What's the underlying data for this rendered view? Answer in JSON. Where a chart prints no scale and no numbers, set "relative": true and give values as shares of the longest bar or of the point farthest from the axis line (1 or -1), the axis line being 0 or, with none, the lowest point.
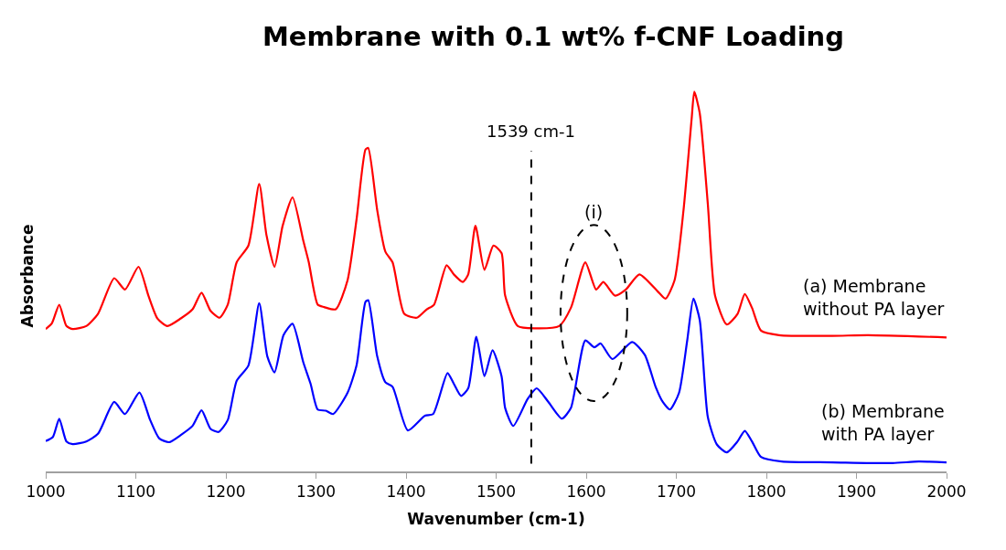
{
  "chart_data": {
    "type": "line",
    "title": "Membrane with 0.1 wt% f-CNF Loading",
    "xlabel": "Wavenumber (cm-1)",
    "ylabel": "Absorbance",
    "relative": true,
    "xlim": [
      1000,
      2000
    ],
    "xticks": [
      1000,
      1100,
      1200,
      1300,
      1400,
      1500,
      1600,
      1700,
      1800,
      1900,
      2000
    ],
    "legend": false,
    "marker": "none",
    "line_style": "solid",
    "series": [
      {
        "name": "(a) Membrane\nwithout PA layer",
        "color": "#ff0000",
        "x": [
          1000,
          1007,
          1015,
          1023,
          1030,
          1045,
          1058,
          1076,
          1088,
          1103,
          1114,
          1124,
          1135,
          1150,
          1163,
          1173,
          1183,
          1193,
          1202,
          1212,
          1225,
          1237,
          1245,
          1254,
          1263,
          1274,
          1286,
          1292,
          1302,
          1309,
          1322,
          1335,
          1345,
          1355,
          1358,
          1368,
          1377,
          1385,
          1398,
          1412,
          1423,
          1431,
          1445,
          1453,
          1463,
          1469,
          1477,
          1487,
          1497,
          1506,
          1510,
          1524,
          1543,
          1570,
          1583,
          1599,
          1611,
          1619,
          1632,
          1644,
          1659,
          1679,
          1688,
          1698,
          1708,
          1717,
          1720,
          1726,
          1735,
          1743,
          1756,
          1768,
          1776,
          1784,
          1794,
          1814,
          1873,
          1913,
          2000
        ],
        "values": [
          0.375,
          0.391,
          0.439,
          0.383,
          0.375,
          0.383,
          0.415,
          0.509,
          0.479,
          0.539,
          0.463,
          0.403,
          0.383,
          0.403,
          0.427,
          0.471,
          0.423,
          0.405,
          0.439,
          0.551,
          0.595,
          0.757,
          0.623,
          0.539,
          0.647,
          0.722,
          0.607,
          0.551,
          0.439,
          0.433,
          0.427,
          0.503,
          0.663,
          0.848,
          0.852,
          0.688,
          0.579,
          0.551,
          0.415,
          0.405,
          0.427,
          0.439,
          0.543,
          0.519,
          0.499,
          0.519,
          0.647,
          0.531,
          0.595,
          0.575,
          0.463,
          0.383,
          0.377,
          0.383,
          0.431,
          0.551,
          0.479,
          0.499,
          0.463,
          0.479,
          0.519,
          0.475,
          0.455,
          0.503,
          0.688,
          0.928,
          1.0,
          0.944,
          0.704,
          0.463,
          0.387,
          0.415,
          0.467,
          0.431,
          0.371,
          0.359,
          0.357,
          0.359,
          0.353
        ]
      },
      {
        "name": "(b) Membrane\nwith PA layer",
        "color": "#0000ff",
        "x": [
          1000,
          1008,
          1015,
          1023,
          1030,
          1045,
          1058,
          1076,
          1088,
          1104,
          1116,
          1126,
          1137,
          1150,
          1163,
          1173,
          1183,
          1192,
          1202,
          1212,
          1225,
          1237,
          1246,
          1254,
          1264,
          1274,
          1286,
          1294,
          1302,
          1311,
          1319,
          1335,
          1345,
          1355,
          1358,
          1368,
          1377,
          1385,
          1402,
          1421,
          1430,
          1446,
          1453,
          1461,
          1469,
          1478,
          1487,
          1496,
          1506,
          1510,
          1519,
          1535,
          1545,
          1558,
          1573,
          1583,
          1599,
          1609,
          1616,
          1629,
          1651,
          1665,
          1677,
          1685,
          1693,
          1703,
          1712,
          1719,
          1726,
          1735,
          1745,
          1756,
          1768,
          1776,
          1784,
          1794,
          1817,
          1873,
          1940,
          1969,
          2000
        ],
        "values": [
          0.08,
          0.091,
          0.139,
          0.079,
          0.072,
          0.079,
          0.099,
          0.183,
          0.151,
          0.208,
          0.135,
          0.087,
          0.077,
          0.096,
          0.12,
          0.161,
          0.112,
          0.104,
          0.135,
          0.239,
          0.279,
          0.443,
          0.303,
          0.261,
          0.359,
          0.389,
          0.287,
          0.231,
          0.163,
          0.16,
          0.151,
          0.207,
          0.279,
          0.447,
          0.451,
          0.303,
          0.235,
          0.223,
          0.108,
          0.147,
          0.151,
          0.259,
          0.231,
          0.199,
          0.219,
          0.355,
          0.251,
          0.319,
          0.251,
          0.167,
          0.12,
          0.191,
          0.219,
          0.183,
          0.139,
          0.167,
          0.345,
          0.327,
          0.337,
          0.296,
          0.341,
          0.307,
          0.223,
          0.183,
          0.163,
          0.207,
          0.343,
          0.455,
          0.399,
          0.143,
          0.071,
          0.05,
          0.079,
          0.107,
          0.079,
          0.038,
          0.026,
          0.024,
          0.022,
          0.026,
          0.024
        ]
      }
    ],
    "ref_lines": [
      {
        "axis": "x",
        "value": 1539,
        "label": "1539 cm-1",
        "color": "#000000",
        "line_style": "dashed"
      }
    ],
    "annotations": [
      "(i)"
    ]
  }
}
